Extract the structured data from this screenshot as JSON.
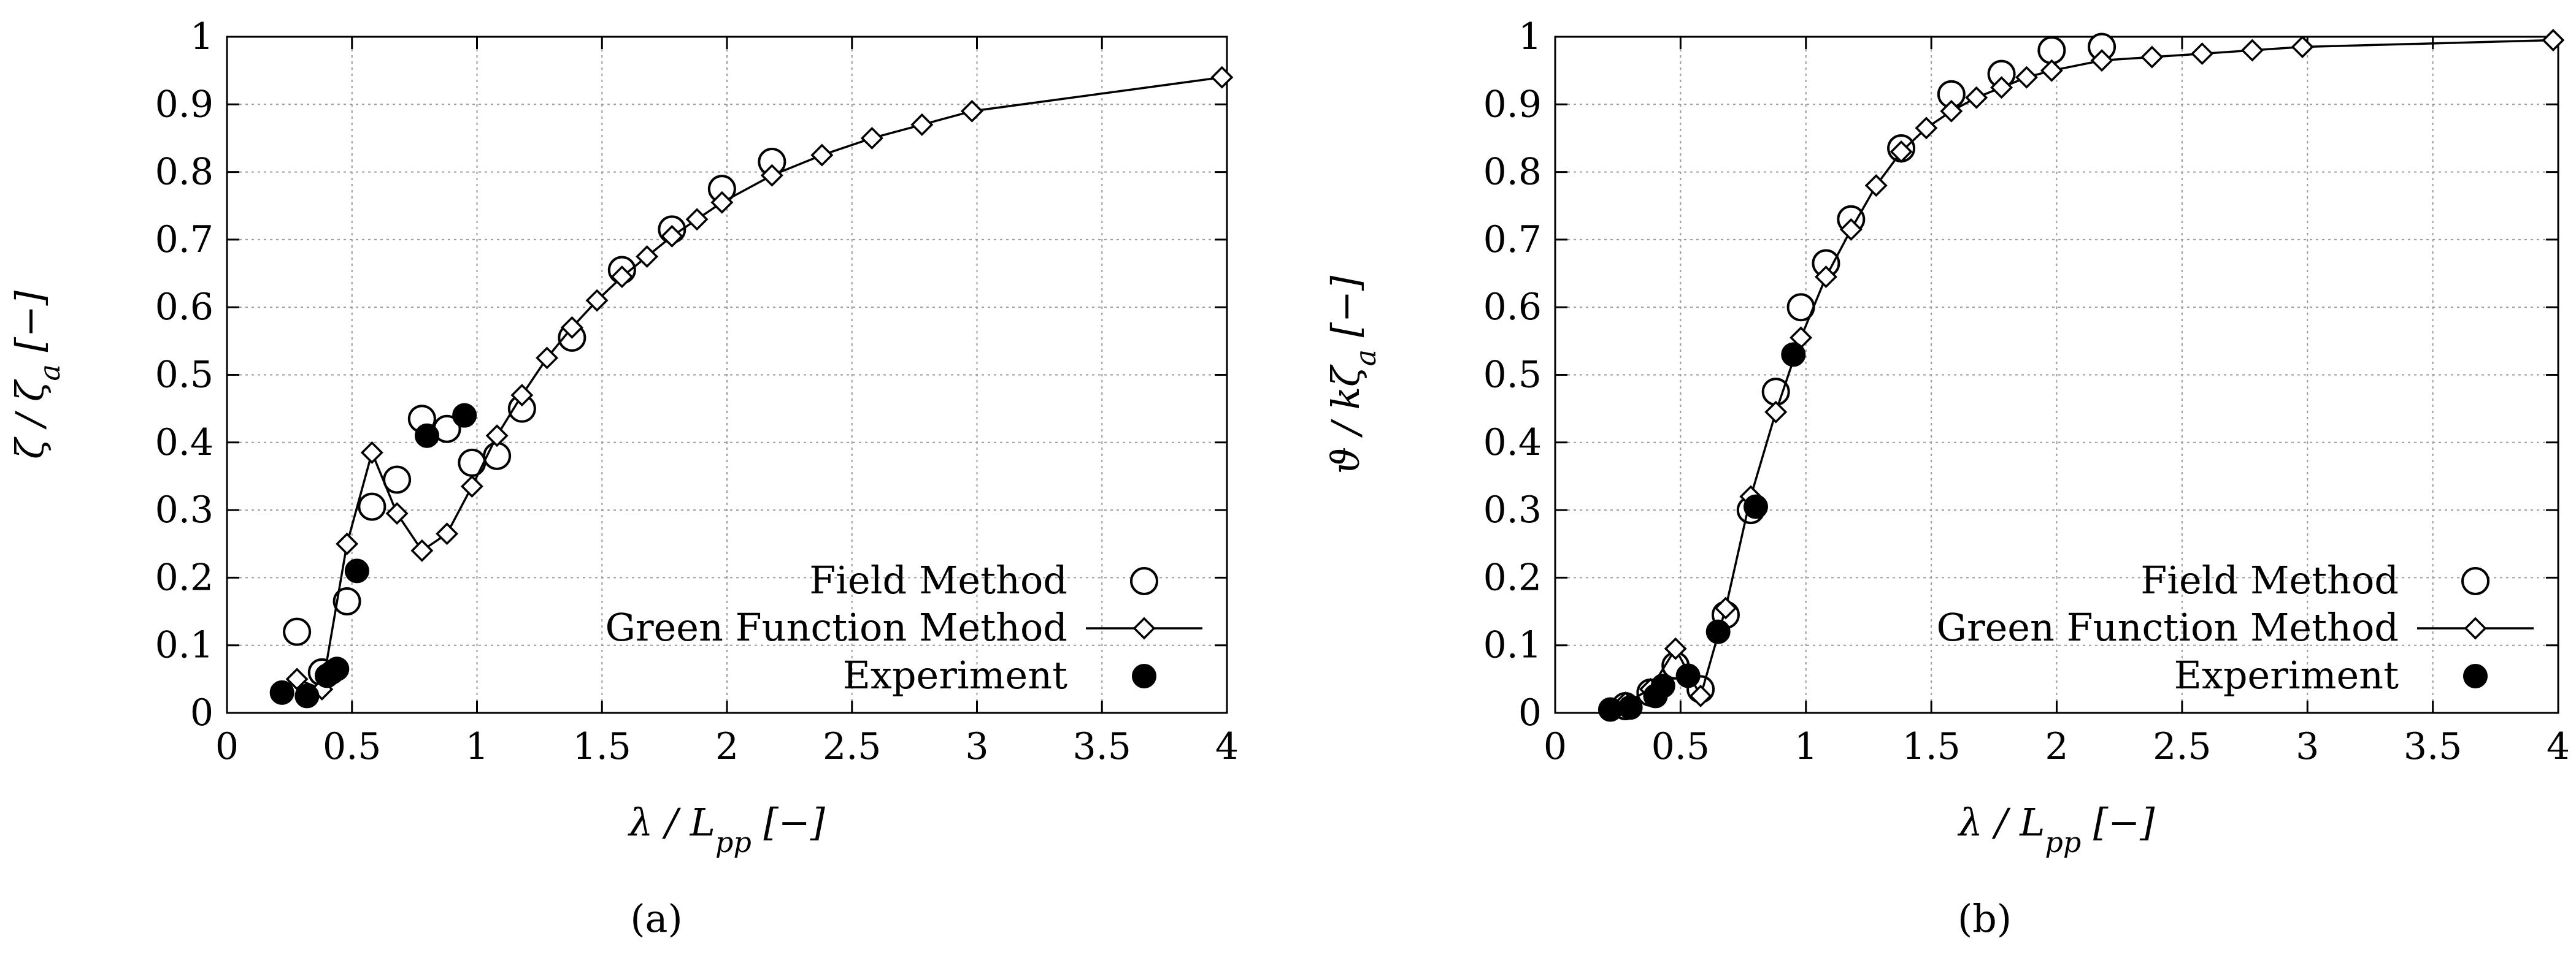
{
  "chart_data": [
    {
      "type": "scatter",
      "panel_label": "(a)",
      "xlabel": "λ / L_pp [−]",
      "ylabel": "ζ / ζ_a [−]",
      "xlim": [
        0,
        4
      ],
      "ylim": [
        0,
        1
      ],
      "xticks": [
        "0",
        "0.5",
        "1",
        "1.5",
        "2",
        "2.5",
        "3",
        "3.5",
        "4"
      ],
      "yticks": [
        "0",
        "0.1",
        "0.2",
        "0.3",
        "0.4",
        "0.5",
        "0.6",
        "0.7",
        "0.8",
        "0.9",
        "1"
      ],
      "grid": true,
      "legend_position": "bottom-right",
      "series": [
        {
          "name": "Field Method",
          "marker": "open-circle",
          "x": [
            0.28,
            0.38,
            0.48,
            0.58,
            0.68,
            0.78,
            0.88,
            0.98,
            1.08,
            1.18,
            1.38,
            1.58,
            1.78,
            1.98,
            2.18
          ],
          "y": [
            0.12,
            0.06,
            0.165,
            0.305,
            0.345,
            0.435,
            0.42,
            0.37,
            0.38,
            0.45,
            0.555,
            0.655,
            0.715,
            0.775,
            0.815
          ]
        },
        {
          "name": "Green Function Method",
          "marker": "open-diamond-line",
          "x": [
            0.28,
            0.38,
            0.48,
            0.58,
            0.68,
            0.78,
            0.88,
            0.98,
            1.08,
            1.18,
            1.28,
            1.38,
            1.48,
            1.58,
            1.68,
            1.78,
            1.88,
            1.98,
            2.18,
            2.38,
            2.58,
            2.78,
            2.98,
            3.98
          ],
          "y": [
            0.05,
            0.035,
            0.25,
            0.385,
            0.295,
            0.24,
            0.265,
            0.335,
            0.41,
            0.47,
            0.525,
            0.57,
            0.61,
            0.645,
            0.675,
            0.705,
            0.73,
            0.755,
            0.795,
            0.825,
            0.85,
            0.87,
            0.89,
            0.94
          ]
        },
        {
          "name": "Experiment",
          "marker": "filled-circle",
          "x": [
            0.22,
            0.32,
            0.4,
            0.42,
            0.44,
            0.52,
            0.8,
            0.95
          ],
          "y": [
            0.03,
            0.025,
            0.055,
            0.06,
            0.065,
            0.21,
            0.41,
            0.44
          ]
        }
      ]
    },
    {
      "type": "scatter",
      "panel_label": "(b)",
      "xlabel": "λ / L_pp [−]",
      "ylabel": "ϑ / kζ_a [−]",
      "xlim": [
        0,
        4
      ],
      "ylim": [
        0,
        1
      ],
      "xticks": [
        "0",
        "0.5",
        "1",
        "1.5",
        "2",
        "2.5",
        "3",
        "3.5",
        "4"
      ],
      "yticks": [
        "0",
        "0.1",
        "0.2",
        "0.3",
        "0.4",
        "0.5",
        "0.6",
        "0.7",
        "0.8",
        "0.9",
        "1"
      ],
      "grid": true,
      "legend_position": "bottom-right",
      "series": [
        {
          "name": "Field Method",
          "marker": "open-circle",
          "x": [
            0.28,
            0.38,
            0.48,
            0.58,
            0.68,
            0.78,
            0.88,
            0.98,
            1.08,
            1.18,
            1.38,
            1.58,
            1.78,
            1.98,
            2.18
          ],
          "y": [
            0.01,
            0.03,
            0.07,
            0.035,
            0.145,
            0.3,
            0.475,
            0.6,
            0.665,
            0.73,
            0.835,
            0.915,
            0.945,
            0.98,
            0.985
          ]
        },
        {
          "name": "Green Function Method",
          "marker": "open-diamond-line",
          "x": [
            0.28,
            0.38,
            0.48,
            0.58,
            0.68,
            0.78,
            0.88,
            0.98,
            1.08,
            1.18,
            1.28,
            1.38,
            1.48,
            1.58,
            1.68,
            1.78,
            1.88,
            1.98,
            2.18,
            2.38,
            2.58,
            2.78,
            2.98,
            3.98
          ],
          "y": [
            0.015,
            0.035,
            0.095,
            0.025,
            0.155,
            0.32,
            0.445,
            0.555,
            0.645,
            0.715,
            0.78,
            0.83,
            0.865,
            0.89,
            0.91,
            0.925,
            0.94,
            0.95,
            0.965,
            0.97,
            0.975,
            0.98,
            0.985,
            0.995
          ]
        },
        {
          "name": "Experiment",
          "marker": "filled-circle",
          "x": [
            0.22,
            0.3,
            0.4,
            0.43,
            0.53,
            0.65,
            0.8,
            0.95
          ],
          "y": [
            0.005,
            0.008,
            0.025,
            0.04,
            0.055,
            0.12,
            0.305,
            0.53
          ]
        }
      ]
    }
  ]
}
